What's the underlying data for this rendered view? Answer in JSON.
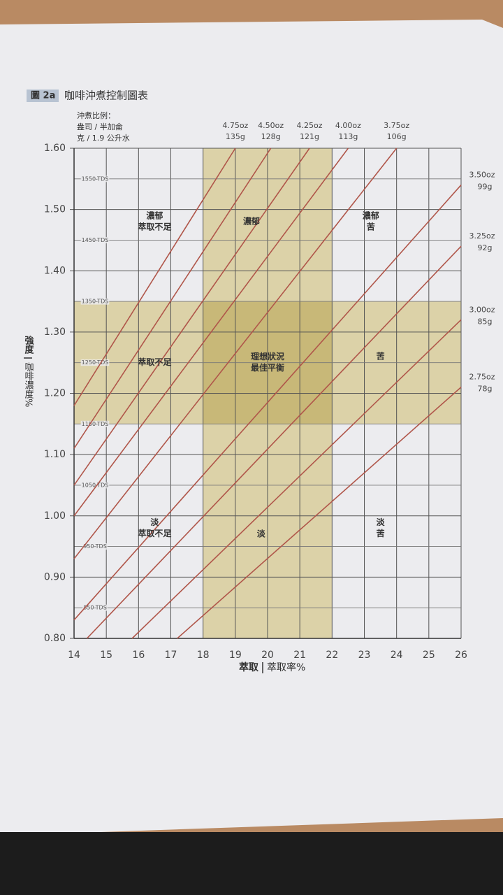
{
  "chart_data": {
    "type": "line",
    "figure_label": "圖 2a",
    "title": "咖啡沖煮控制圖表",
    "ratio_heading": [
      "沖煮比例：",
      "盎司 / 半加侖",
      "克 / 1.9 公升水"
    ],
    "x_label": [
      "萃取",
      "萃取率%"
    ],
    "y_label": [
      "強度",
      "咖啡濃度%"
    ],
    "xlim": [
      14,
      26
    ],
    "xticks": [
      14,
      15,
      16,
      17,
      18,
      19,
      20,
      21,
      22,
      23,
      24,
      25,
      26
    ],
    "ylim": [
      0.8,
      1.6
    ],
    "yticks": [
      {
        "value": 0.8,
        "label": "0.80"
      },
      {
        "value": 0.9,
        "label": "0.90"
      },
      {
        "value": 1.0,
        "label": "1.00"
      },
      {
        "value": 1.1,
        "label": "1.10"
      },
      {
        "value": 1.2,
        "label": "1.20"
      },
      {
        "value": 1.3,
        "label": "1.30"
      },
      {
        "value": 1.4,
        "label": "1.40"
      },
      {
        "value": 1.5,
        "label": "1.50"
      },
      {
        "value": 1.6,
        "label": "1.60"
      }
    ],
    "y2lim": [
      800,
      1600
    ],
    "y2ticks": [
      {
        "value": 850,
        "label": "850-TDS"
      },
      {
        "value": 950,
        "label": "950-TDS"
      },
      {
        "value": 1050,
        "label": "1050-TDS"
      },
      {
        "value": 1150,
        "label": "1150-TDS"
      },
      {
        "value": 1250,
        "label": "1250-TDS"
      },
      {
        "value": 1350,
        "label": "1350-TDS"
      },
      {
        "value": 1450,
        "label": "1450-TDS"
      },
      {
        "value": 1550,
        "label": "1550-TDS"
      }
    ],
    "grid": true,
    "ideal_extraction": [
      18,
      22
    ],
    "ideal_strength": [
      1.15,
      1.35
    ],
    "band_color": "#dcd2a8",
    "ideal_color": "#c8b878",
    "zones": [
      [
        "濃郁",
        "萃取不足"
      ],
      [
        "濃郁"
      ],
      [
        "濃郁",
        "苦"
      ],
      [
        "萃取不足"
      ],
      [
        "理想狀況",
        "最佳平衡"
      ],
      [
        "苦"
      ],
      [
        "淡",
        "萃取不足"
      ],
      [
        "淡"
      ],
      [
        "淡",
        "苦"
      ]
    ],
    "series": [
      {
        "name": "4.75oz",
        "grams": "135g",
        "color": "#b0564a",
        "x": [
          14,
          19.0
        ],
        "values": [
          1.18,
          1.6
        ]
      },
      {
        "name": "4.50oz",
        "grams": "128g",
        "color": "#b0564a",
        "x": [
          14,
          20.1
        ],
        "values": [
          1.11,
          1.6
        ]
      },
      {
        "name": "4.25oz",
        "grams": "121g",
        "color": "#b0564a",
        "x": [
          14,
          21.3
        ],
        "values": [
          1.05,
          1.6
        ]
      },
      {
        "name": "4.00oz",
        "grams": "113g",
        "color": "#b0564a",
        "x": [
          14,
          22.5
        ],
        "values": [
          1.0,
          1.6
        ]
      },
      {
        "name": "3.75oz",
        "grams": "106g",
        "color": "#b0564a",
        "x": [
          14,
          24.0
        ],
        "values": [
          0.93,
          1.6
        ]
      },
      {
        "name": "3.50oz",
        "grams": "99g",
        "color": "#b0564a",
        "x": [
          14,
          26
        ],
        "values": [
          0.83,
          1.54
        ]
      },
      {
        "name": "3.25oz",
        "grams": "92g",
        "color": "#b0564a",
        "x": [
          14.4,
          26
        ],
        "values": [
          0.8,
          1.44
        ]
      },
      {
        "name": "3.00oz",
        "grams": "85g",
        "color": "#b0564a",
        "x": [
          15.8,
          26
        ],
        "values": [
          0.8,
          1.32
        ]
      },
      {
        "name": "2.75oz",
        "grams": "78g",
        "color": "#b0564a",
        "x": [
          17.2,
          26
        ],
        "values": [
          0.8,
          1.21
        ]
      }
    ]
  }
}
